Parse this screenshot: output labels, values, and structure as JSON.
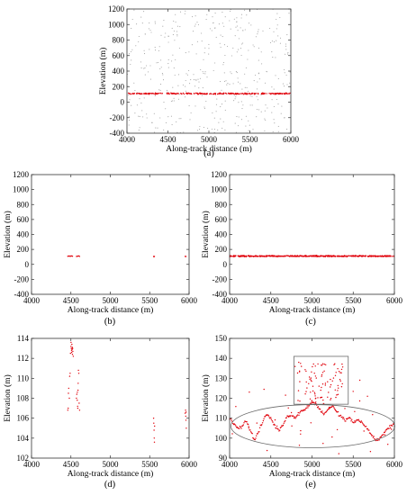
{
  "chart_data": [
    {
      "panel": "(a)",
      "type": "scatter",
      "xlabel": "Along-track distance (m)",
      "ylabel": "Elevation (m)",
      "xlim": [
        4000,
        6000
      ],
      "ylim": [
        -400,
        1200
      ],
      "xticks": [
        4000,
        4500,
        5000,
        5500,
        6000
      ],
      "yticks": [
        -400,
        -200,
        0,
        200,
        400,
        600,
        800,
        1000,
        1200
      ],
      "series": [
        {
          "color": "#a0a0a0",
          "description_values": {
            "x_range": [
              4000,
              6000
            ],
            "y_range": [
              -400,
              1200
            ],
            "count": 420
          }
        },
        {
          "color": "#e0000a",
          "description_values": {
            "x_range": [
              4000,
              6000
            ],
            "y_center": 110,
            "count": 300
          }
        }
      ]
    },
    {
      "panel": "(b)",
      "type": "scatter",
      "xlabel": "Along-track distance (m)",
      "ylabel": "Elevation (m)",
      "xlim": [
        4000,
        6000
      ],
      "ylim": [
        -400,
        1200
      ],
      "xticks": [
        4000,
        4500,
        5000,
        5500,
        6000
      ],
      "yticks": [
        -400,
        -200,
        0,
        200,
        400,
        600,
        800,
        1000,
        1200
      ],
      "series": [
        {
          "color": "#e0000a",
          "x": [
            4460,
            4470,
            4480,
            4490,
            4500,
            4510,
            4520,
            4570,
            4580,
            4590,
            4600,
            4610,
            5550,
            5555,
            5560,
            5950,
            5960
          ],
          "y": [
            108,
            110,
            112,
            107,
            111,
            113,
            109,
            106,
            108,
            110,
            112,
            107,
            105,
            103,
            106,
            106,
            105
          ]
        }
      ]
    },
    {
      "panel": "(c)",
      "type": "scatter",
      "xlabel": "Along-track distance (m)",
      "ylabel": "Elevation (m)",
      "xlim": [
        4000,
        6000
      ],
      "ylim": [
        -400,
        1200
      ],
      "xticks": [
        4000,
        4500,
        5000,
        5500,
        6000
      ],
      "yticks": [
        -400,
        -200,
        0,
        200,
        400,
        600,
        800,
        1000,
        1200
      ],
      "series": [
        {
          "color": "#e0000a",
          "description_values": {
            "x_range": [
              4000,
              6000
            ],
            "y_center": 110,
            "count": 500
          }
        }
      ]
    },
    {
      "panel": "(d)",
      "type": "scatter",
      "xlabel": "Along-track distance (m)",
      "ylabel": "Elevation (m)",
      "xlim": [
        4000,
        6000
      ],
      "ylim": [
        102,
        114
      ],
      "xticks": [
        4000,
        4500,
        5000,
        5500,
        6000
      ],
      "yticks": [
        102,
        104,
        106,
        108,
        110,
        112,
        114
      ],
      "series": [
        {
          "color": "#e0000a",
          "x": [
            4460,
            4465,
            4468,
            4472,
            4480,
            4485,
            4490,
            4495,
            4500,
            4502,
            4505,
            4508,
            4510,
            4512,
            4515,
            4518,
            4520,
            4522,
            4525,
            4530,
            4570,
            4575,
            4580,
            4582,
            4585,
            4588,
            4590,
            4592,
            4595,
            4600,
            4605,
            4610,
            5550,
            5552,
            5555,
            5558,
            5560,
            5562,
            5950,
            5955,
            5958,
            5960,
            5962,
            5965
          ],
          "y": [
            106.8,
            107.0,
            108.5,
            109.0,
            108.0,
            110.2,
            110.5,
            112.5,
            113.2,
            113.6,
            113.0,
            112.8,
            112.6,
            113.4,
            112.9,
            113.1,
            112.4,
            113.0,
            112.7,
            112.2,
            108.0,
            108.4,
            107.8,
            108.6,
            107.2,
            107.0,
            108.8,
            109.5,
            110.8,
            110.5,
            107.5,
            106.8,
            106.0,
            105.5,
            104.8,
            104.0,
            103.6,
            105.2,
            106.5,
            106.8,
            106.2,
            105.8,
            106.6,
            105.0
          ]
        }
      ]
    },
    {
      "panel": "(e)",
      "type": "scatter",
      "xlabel": "Along-track distance (m)",
      "ylabel": "Elevation (m)",
      "xlim": [
        4000,
        6000
      ],
      "ylim": [
        90,
        150
      ],
      "xticks": [
        4000,
        4500,
        5000,
        5500,
        6000
      ],
      "yticks": [
        90,
        100,
        110,
        120,
        130,
        140,
        150
      ],
      "series": [
        {
          "color": "#e0000a",
          "x": [
            4000,
            4050,
            4100,
            4150,
            4200,
            4250,
            4300,
            4350,
            4400,
            4450,
            4500,
            4550,
            4600,
            4650,
            4700,
            4750,
            4800,
            4850,
            4900,
            4950,
            5000,
            5050,
            5100,
            5150,
            5200,
            5250,
            5300,
            5350,
            5400,
            5450,
            5500,
            5550,
            5600,
            5650,
            5700,
            5750,
            5800,
            5850,
            5900,
            5950,
            6000
          ],
          "y": [
            110,
            107,
            105,
            106,
            109,
            104,
            99,
            103,
            108,
            112,
            110,
            106,
            104,
            107,
            111,
            112,
            110,
            113,
            114,
            116,
            118,
            117,
            114,
            112,
            115,
            116,
            113,
            111,
            109,
            110,
            108,
            109,
            108,
            106,
            103,
            100,
            99,
            101,
            104,
            106,
            107
          ]
        }
      ]
    }
  ],
  "panels": [
    {
      "label": "(a)",
      "xlabel": "Along-track distance (m)",
      "ylabel": "Elevation (m)"
    },
    {
      "label": "(b)",
      "xlabel": "Along-track distance (m)",
      "ylabel": "Elevation (m)"
    },
    {
      "label": "(c)",
      "xlabel": "Along-track distance (m)",
      "ylabel": "Elevation (m)"
    },
    {
      "label": "(d)",
      "xlabel": "Along-track distance (m)",
      "ylabel": "Elevation (m)"
    },
    {
      "label": "(e)",
      "xlabel": "Along-track distance (m)",
      "ylabel": "Elevation (m)"
    }
  ],
  "colors": {
    "signal": "#e0000a",
    "noise": "#a0a0a0",
    "frame": "#333333",
    "annotation": "#6a6a6a"
  }
}
